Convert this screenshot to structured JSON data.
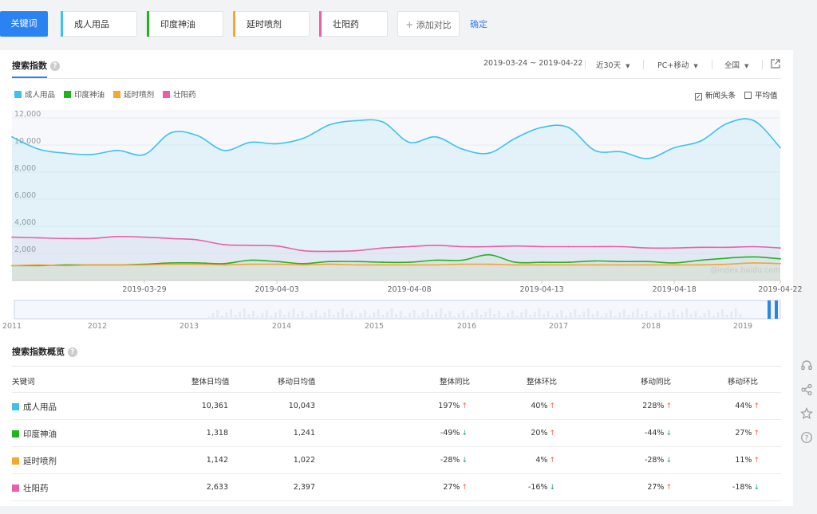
{
  "keywords_bar": {
    "label": "关键词",
    "keywords": [
      {
        "name": "成人用品",
        "color": "#3dc1ec"
      },
      {
        "name": "印度神油",
        "color": "#1cb51c"
      },
      {
        "name": "延时喷剂",
        "color": "#f7a62e"
      },
      {
        "name": "壮阳药",
        "color": "#ec5ea8"
      }
    ],
    "add_compare": "添加对比",
    "confirm": "确定"
  },
  "panel": {
    "title": "搜索指数",
    "date_range": "2019-03-24 ~ 2019-04-22",
    "period": "近30天",
    "device": "PC+移动",
    "region": "全国"
  },
  "legend": {
    "items": [
      "成人用品",
      "印度神油",
      "延时喷剂",
      "壮阳药"
    ],
    "news_checkbox": "新闻头条",
    "avg_checkbox": "平均值"
  },
  "chart_data": {
    "type": "area",
    "ylim": [
      0,
      12000
    ],
    "yticks": [
      "12,000",
      "10,000",
      "8,000",
      "6,000",
      "4,000",
      "2,000"
    ],
    "xticks": [
      "2019-03-29",
      "2019-04-03",
      "2019-04-08",
      "2019-04-13",
      "2019-04-18",
      "2019-04-22"
    ],
    "x": [
      "2019-03-24",
      "2019-03-25",
      "2019-03-26",
      "2019-03-27",
      "2019-03-28",
      "2019-03-29",
      "2019-03-30",
      "2019-03-31",
      "2019-04-01",
      "2019-04-02",
      "2019-04-03",
      "2019-04-04",
      "2019-04-05",
      "2019-04-06",
      "2019-04-07",
      "2019-04-08",
      "2019-04-09",
      "2019-04-10",
      "2019-04-11",
      "2019-04-12",
      "2019-04-13",
      "2019-04-14",
      "2019-04-15",
      "2019-04-16",
      "2019-04-17",
      "2019-04-18",
      "2019-04-19",
      "2019-04-20",
      "2019-04-21",
      "2019-04-22"
    ],
    "series": [
      {
        "name": "成人用品",
        "color": "#3dc1ec",
        "values": [
          10600,
          9700,
          9400,
          9300,
          9600,
          9300,
          10900,
          10700,
          9600,
          10200,
          10100,
          10500,
          11500,
          11800,
          11700,
          10200,
          10600,
          9700,
          9400,
          10500,
          11300,
          11300,
          9600,
          9500,
          9000,
          9800,
          10300,
          11600,
          11800,
          9800
        ]
      },
      {
        "name": "印度神油",
        "color": "#1cb51c",
        "values": [
          1100,
          1100,
          1150,
          1150,
          1150,
          1200,
          1300,
          1300,
          1250,
          1500,
          1400,
          1250,
          1400,
          1400,
          1350,
          1350,
          1500,
          1500,
          1900,
          1350,
          1350,
          1350,
          1450,
          1400,
          1400,
          1300,
          1500,
          1650,
          1750,
          1600
        ]
      },
      {
        "name": "延时喷剂",
        "color": "#f7a62e",
        "values": [
          1100,
          1150,
          1100,
          1150,
          1150,
          1150,
          1200,
          1200,
          1150,
          1200,
          1200,
          1150,
          1200,
          1150,
          1150,
          1150,
          1150,
          1200,
          1200,
          1150,
          1150,
          1150,
          1150,
          1150,
          1150,
          1150,
          1150,
          1200,
          1300,
          1250
        ]
      },
      {
        "name": "壮阳药",
        "color": "#ec5ea8",
        "values": [
          3200,
          3150,
          3100,
          3100,
          3250,
          3200,
          3100,
          3000,
          2650,
          2600,
          2550,
          2200,
          2150,
          2200,
          2400,
          2500,
          2600,
          2500,
          2500,
          2550,
          2500,
          2500,
          2500,
          2500,
          2400,
          2400,
          2450,
          2450,
          2500,
          2400
        ]
      }
    ]
  },
  "timeline": {
    "years": [
      "2011",
      "2012",
      "2013",
      "2014",
      "2015",
      "2016",
      "2017",
      "2018",
      "2019"
    ]
  },
  "watermark": "@index.baidu.com",
  "overview": {
    "title": "搜索指数概览",
    "headers": [
      "关键词",
      "整体日均值",
      "移动日均值",
      "整体同比",
      "整体环比",
      "移动同比",
      "移动环比"
    ],
    "rows": [
      {
        "name": "成人用品",
        "color": "#3dc1ec",
        "overall_avg": "10,361",
        "mobile_avg": "10,043",
        "yoy": "197%",
        "yoy_dir": "up",
        "mom": "40%",
        "mom_dir": "up",
        "m_yoy": "228%",
        "m_yoy_dir": "up",
        "m_mom": "44%",
        "m_mom_dir": "up"
      },
      {
        "name": "印度神油",
        "color": "#1cb51c",
        "overall_avg": "1,318",
        "mobile_avg": "1,241",
        "yoy": "-49%",
        "yoy_dir": "down",
        "mom": "20%",
        "mom_dir": "up",
        "m_yoy": "-44%",
        "m_yoy_dir": "down",
        "m_mom": "27%",
        "m_mom_dir": "up"
      },
      {
        "name": "延时喷剂",
        "color": "#f7a62e",
        "overall_avg": "1,142",
        "mobile_avg": "1,022",
        "yoy": "-28%",
        "yoy_dir": "down",
        "mom": "4%",
        "mom_dir": "up",
        "m_yoy": "-28%",
        "m_yoy_dir": "down",
        "m_mom": "11%",
        "m_mom_dir": "up"
      },
      {
        "name": "壮阳药",
        "color": "#ec5ea8",
        "overall_avg": "2,633",
        "mobile_avg": "2,397",
        "yoy": "27%",
        "yoy_dir": "up",
        "mom": "-16%",
        "mom_dir": "down",
        "m_yoy": "27%",
        "m_yoy_dir": "up",
        "m_mom": "-18%",
        "m_mom_dir": "down"
      }
    ]
  },
  "side_tools": [
    "headset-icon",
    "share-icon",
    "star-icon",
    "help-icon"
  ]
}
